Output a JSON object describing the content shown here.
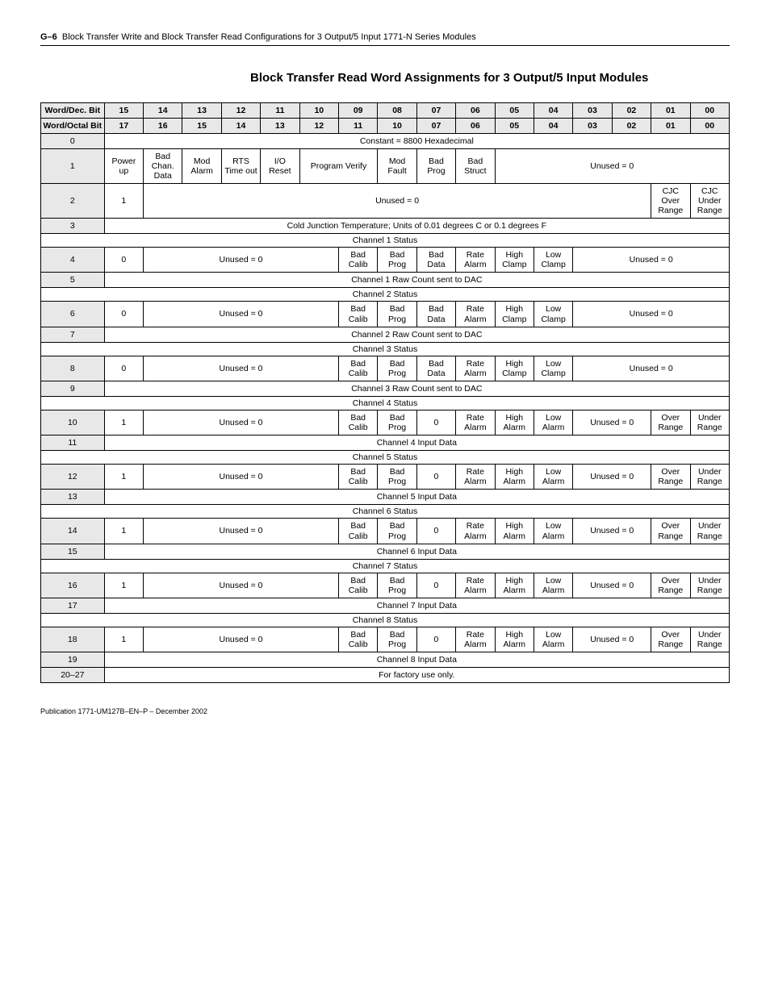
{
  "header": {
    "pagenum": "G–6",
    "title": "Block Transfer Write and Block Transfer Read Configurations for 3 Output/5 Input 1771-N Series Modules"
  },
  "section_title": "Block Transfer Read Word Assignments for 3 Output/5 Input Modules",
  "hdr_dec": {
    "label": "Word/Dec. Bit",
    "bits": [
      "15",
      "14",
      "13",
      "12",
      "11",
      "10",
      "09",
      "08",
      "07",
      "06",
      "05",
      "04",
      "03",
      "02",
      "01",
      "00"
    ]
  },
  "hdr_oct": {
    "label": "Word/Octal Bit",
    "bits": [
      "17",
      "16",
      "15",
      "14",
      "13",
      "12",
      "11",
      "10",
      "07",
      "06",
      "05",
      "04",
      "03",
      "02",
      "01",
      "00"
    ]
  },
  "rows": {
    "r0": {
      "word": "0",
      "full": "Constant = 8800 Hexadecimal"
    },
    "r1": {
      "word": "1",
      "c15": "Power up",
      "c14": "Bad Chan. Data",
      "c13": "Mod Alarm",
      "c12": "RTS Time out",
      "c11": "I/O Reset",
      "c10_09": "Program Verify",
      "c08": "Mod Fault",
      "c07": "Bad Prog",
      "c06": "Bad Struct",
      "c05_00": "Unused = 0"
    },
    "r2": {
      "word": "2",
      "c15": "1",
      "c14_02": "Unused = 0",
      "c01": "CJC Over Range",
      "c00": "CJC Under Range"
    },
    "r3": {
      "word": "3",
      "full": "Cold Junction Temperature; Units of 0.01 degrees C or 0.1 degrees F"
    },
    "ch1_status": "Channel 1 Status",
    "r4": {
      "word": "4",
      "c15": "0",
      "unused_a": "Unused = 0",
      "c09": "Bad Calib",
      "c08": "Bad Prog",
      "c07": "Bad Data",
      "c06": "Rate Alarm",
      "c05": "High Clamp",
      "c04": "Low Clamp",
      "unused_b": "Unused = 0"
    },
    "r5": {
      "word": "5",
      "full": "Channel 1 Raw Count sent to DAC"
    },
    "ch2_status": "Channel 2 Status",
    "r6": {
      "word": "6",
      "c15": "0",
      "unused_a": "Unused = 0",
      "c09": "Bad Calib",
      "c08": "Bad Prog",
      "c07": "Bad Data",
      "c06": "Rate Alarm",
      "c05": "High Clamp",
      "c04": "Low Clamp",
      "unused_b": "Unused = 0"
    },
    "r7": {
      "word": "7",
      "full": "Channel 2 Raw Count sent to DAC"
    },
    "ch3_status": "Channel 3 Status",
    "r8": {
      "word": "8",
      "c15": "0",
      "unused_a": "Unused = 0",
      "c09": "Bad Calib",
      "c08": "Bad Prog",
      "c07": "Bad Data",
      "c06": "Rate Alarm",
      "c05": "High Clamp",
      "c04": "Low Clamp",
      "unused_b": "Unused = 0"
    },
    "r9": {
      "word": "9",
      "full": "Channel 3 Raw Count sent to DAC"
    },
    "ch4_status": "Channel 4 Status",
    "r10": {
      "word": "10",
      "c15": "1",
      "unused_a": "Unused = 0",
      "c09": "Bad Calib",
      "c08": "Bad Prog",
      "c07": "0",
      "c06": "Rate Alarm",
      "c05": "High Alarm",
      "c04": "Low Alarm",
      "unused_b": "Unused = 0",
      "c01": "Over Range",
      "c00": "Under Range"
    },
    "r11": {
      "word": "11",
      "full": "Channel 4 Input Data"
    },
    "ch5_status": "Channel 5 Status",
    "r12": {
      "word": "12",
      "c15": "1",
      "unused_a": "Unused = 0",
      "c09": "Bad Calib",
      "c08": "Bad Prog",
      "c07": "0",
      "c06": "Rate Alarm",
      "c05": "High Alarm",
      "c04": "Low Alarm",
      "unused_b": "Unused = 0",
      "c01": "Over Range",
      "c00": "Under Range"
    },
    "r13": {
      "word": "13",
      "full": "Channel 5 Input Data"
    },
    "ch6_status": "Channel 6 Status",
    "r14": {
      "word": "14",
      "c15": "1",
      "unused_a": "Unused = 0",
      "c09": "Bad Calib",
      "c08": "Bad Prog",
      "c07": "0",
      "c06": "Rate Alarm",
      "c05": "High Alarm",
      "c04": "Low Alarm",
      "unused_b": "Unused = 0",
      "c01": "Over Range",
      "c00": "Under Range"
    },
    "r15": {
      "word": "15",
      "full": "Channel 6 Input Data"
    },
    "ch7_status": "Channel 7 Status",
    "r16": {
      "word": "16",
      "c15": "1",
      "unused_a": "Unused = 0",
      "c09": "Bad Calib",
      "c08": "Bad Prog",
      "c07": "0",
      "c06": "Rate Alarm",
      "c05": "High Alarm",
      "c04": "Low Alarm",
      "unused_b": "Unused = 0",
      "c01": "Over Range",
      "c00": "Under Range"
    },
    "r17": {
      "word": "17",
      "full": "Channel 7 Input Data"
    },
    "ch8_status": "Channel 8 Status",
    "r18": {
      "word": "18",
      "c15": "1",
      "unused_a": "Unused = 0",
      "c09": "Bad Calib",
      "c08": "Bad Prog",
      "c07": "0",
      "c06": "Rate Alarm",
      "c05": "High Alarm",
      "c04": "Low Alarm",
      "unused_b": "Unused = 0",
      "c01": "Over Range",
      "c00": "Under Range"
    },
    "r19": {
      "word": "19",
      "full": "Channel 8 Input Data"
    },
    "r20": {
      "word": "20–27",
      "full": "For factory use only."
    }
  },
  "footer": "Publication 1771-UM127B–EN–P – December 2002"
}
